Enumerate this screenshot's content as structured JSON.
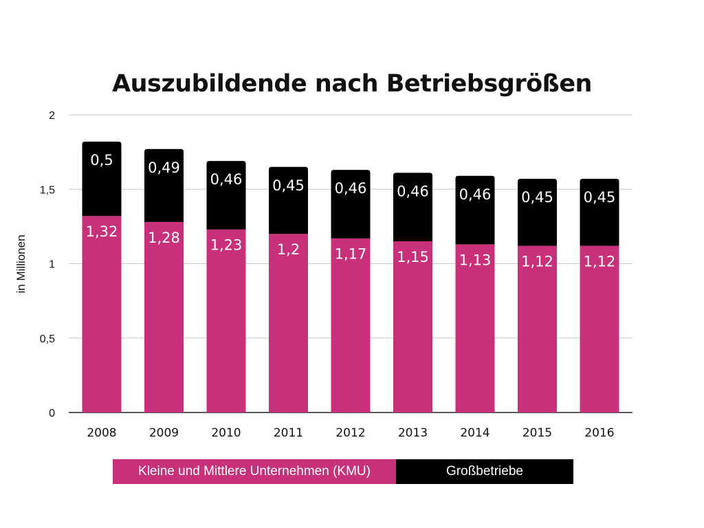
{
  "chart_data": {
    "type": "bar",
    "stacked": true,
    "title": "Auszubildende nach Betriebsgrößen",
    "ylabel": "in Millionen",
    "xlabel": "",
    "ylim": [
      0,
      2
    ],
    "yticks": [
      {
        "value": 0,
        "label": "0"
      },
      {
        "value": 0.5,
        "label": "0,5"
      },
      {
        "value": 1,
        "label": "1"
      },
      {
        "value": 1.5,
        "label": "1,5"
      },
      {
        "value": 2,
        "label": "2"
      }
    ],
    "grid": true,
    "categories": [
      "2008",
      "2009",
      "2010",
      "2011",
      "2012",
      "2013",
      "2014",
      "2015",
      "2016"
    ],
    "series": [
      {
        "name": "Kleine und Mittlere Unternehmen (KMU)",
        "color": "#c9307a",
        "values": [
          1.32,
          1.28,
          1.23,
          1.2,
          1.17,
          1.15,
          1.13,
          1.12,
          1.12
        ],
        "labels": [
          "1,32",
          "1,28",
          "1,23",
          "1,2",
          "1,17",
          "1,15",
          "1,13",
          "1,12",
          "1,12"
        ]
      },
      {
        "name": "Großbetriebe",
        "color": "#000000",
        "values": [
          0.5,
          0.49,
          0.46,
          0.45,
          0.46,
          0.46,
          0.46,
          0.45,
          0.45
        ],
        "labels": [
          "0,5",
          "0,49",
          "0,46",
          "0,45",
          "0,46",
          "0,46",
          "0,46",
          "0,45",
          "0,45"
        ]
      }
    ],
    "legend_position": "bottom"
  }
}
